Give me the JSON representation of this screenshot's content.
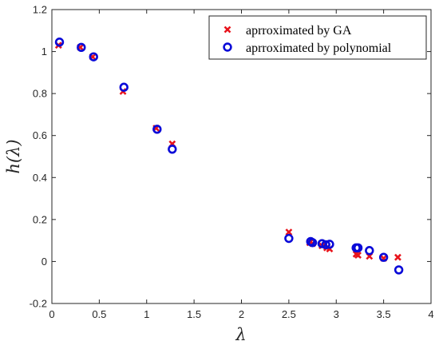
{
  "chart_data": {
    "type": "scatter",
    "xlabel": "λ",
    "ylabel": "h(λ)",
    "xlim": [
      0,
      4
    ],
    "ylim": [
      -0.2,
      1.2
    ],
    "xticks": [
      "0",
      "0.5",
      "1",
      "1.5",
      "2",
      "2.5",
      "3",
      "3.5",
      "4"
    ],
    "yticks": [
      "-0.2",
      "0",
      "0.2",
      "0.4",
      "0.6",
      "0.8",
      "1",
      "1.2"
    ],
    "grid": false,
    "legend_position": "top-right",
    "series": [
      {
        "name": "aprroximated by GA",
        "marker": "x",
        "color": "#e8141c",
        "x": [
          0.07,
          0.3,
          0.43,
          0.75,
          1.1,
          1.27,
          2.5,
          2.72,
          2.75,
          2.85,
          2.9,
          2.93,
          3.21,
          3.23,
          3.35,
          3.5,
          3.65
        ],
        "y": [
          1.03,
          1.02,
          0.975,
          0.81,
          0.635,
          0.56,
          0.14,
          0.09,
          0.085,
          0.075,
          0.065,
          0.06,
          0.035,
          0.03,
          0.025,
          0.015,
          0.02
        ]
      },
      {
        "name": "aprroximated by polynomial",
        "marker": "o",
        "color": "#0a0ad8",
        "x": [
          0.08,
          0.31,
          0.44,
          0.76,
          1.11,
          1.27,
          2.5,
          2.73,
          2.75,
          2.85,
          2.89,
          2.93,
          3.21,
          3.23,
          3.35,
          3.5,
          3.66
        ],
        "y": [
          1.045,
          1.02,
          0.975,
          0.83,
          0.63,
          0.535,
          0.11,
          0.095,
          0.09,
          0.085,
          0.08,
          0.082,
          0.065,
          0.065,
          0.052,
          0.02,
          -0.04
        ]
      }
    ]
  }
}
